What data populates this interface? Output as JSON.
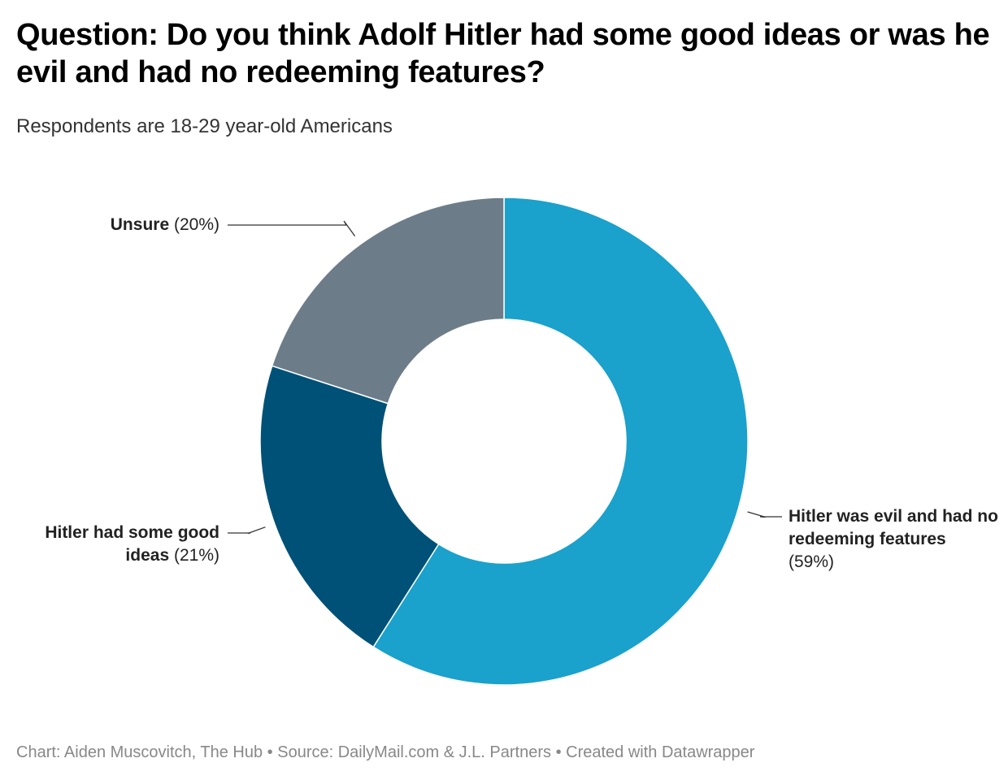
{
  "header": {
    "title": "Question: Do you think Adolf Hitler had some good ideas or was he evil and had no redeeming features?",
    "subtitle": "Respondents are 18-29 year-old Americans"
  },
  "footer": {
    "credit": "Chart: Aiden Muscovitch, The Hub • Source: DailyMail.com & J.L. Partners • Created with Datawrapper"
  },
  "chart_data": {
    "type": "pie",
    "variant": "donut",
    "title": "Question: Do you think Adolf Hitler had some good ideas or was he evil and had no redeeming features?",
    "subtitle": "Respondents are 18-29 year-old Americans",
    "unit": "%",
    "slices": [
      {
        "label": "Hitler was evil and had no redeeming features",
        "value": 59,
        "value_label": "(59%)",
        "color": "#1aa1cc"
      },
      {
        "label": "Hitler had some good ideas",
        "value": 21,
        "value_label": "(21%)",
        "color": "#005177"
      },
      {
        "label": "Unsure",
        "value": 20,
        "value_label": "(20%)",
        "color": "#6d7c89"
      }
    ]
  },
  "colors": {
    "background": "#ffffff",
    "leader_line": "#333333",
    "slice_separator": "#ffffff"
  }
}
